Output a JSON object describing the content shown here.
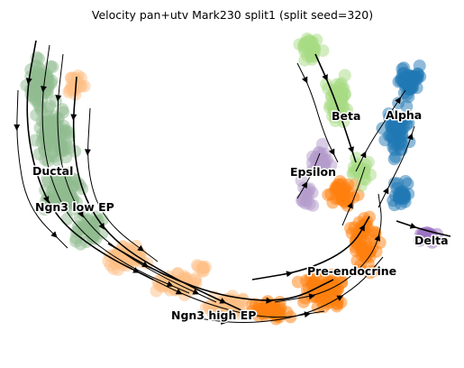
{
  "chart_data": {
    "type": "scatter",
    "title": "Velocity pan+utv Mark230 split1 (split seed=320)",
    "xlabel": "",
    "ylabel": "",
    "grid": false,
    "legend": "on data",
    "overlay": "velocity streamlines",
    "clusters": [
      {
        "name": "Ductal",
        "color": "#8fbc8f"
      },
      {
        "name": "Ngn3 low EP",
        "color": "#8fbc8f"
      },
      {
        "name": "Ngn3 high EP",
        "color": "#fdbf86"
      },
      {
        "name": "Pre-endocrine",
        "color": "#ff7f0e"
      },
      {
        "name": "Beta",
        "color": "#a8dc84"
      },
      {
        "name": "Alpha",
        "color": "#1f77b4"
      },
      {
        "name": "Epsilon",
        "color": "#b39bcb"
      },
      {
        "name": "Delta",
        "color": "#9b74c2"
      }
    ]
  }
}
